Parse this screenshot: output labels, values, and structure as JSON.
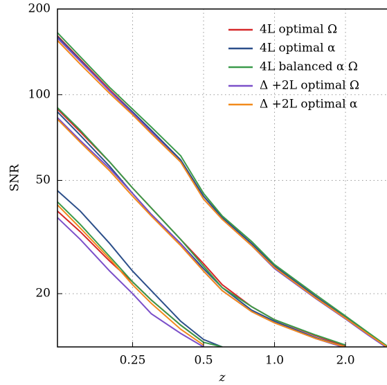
{
  "chart_data": {
    "type": "line",
    "xlabel": "z",
    "ylabel": "SNR",
    "log_x": true,
    "log_y": true,
    "grid": true,
    "legend": "upper right",
    "xlim": [
      0.12,
      3.0
    ],
    "ylim": [
      13,
      200
    ],
    "xticks": [
      0.25,
      0.5,
      {
        "value": 1,
        "label": "1.0"
      },
      {
        "value": 2,
        "label": "2.0"
      }
    ],
    "yticks": [
      20,
      50,
      100,
      200
    ],
    "x": [
      0.12,
      0.15,
      0.2,
      0.25,
      0.3,
      0.4,
      0.5,
      0.6,
      0.8,
      1.0,
      1.5,
      2.0,
      2.5,
      3.0
    ],
    "series": [
      {
        "name": "4L optimal Ω",
        "color": "#d62728",
        "values": [
          [
            161,
            133,
            104,
            87,
            75,
            59,
            44,
            37,
            30,
            25,
            19.5,
            16.5,
            14.5,
            13
          ],
          [
            89,
            74,
            58,
            47,
            40,
            31,
            25.5,
            21.5,
            18,
            16.2,
            14.2,
            13.1,
            null,
            null
          ],
          [
            39,
            33,
            26,
            22,
            19,
            15.5,
            13.5,
            null,
            null,
            null,
            null,
            null,
            null,
            null
          ]
        ]
      },
      {
        "name": "4L optimal α",
        "color": "#2c4f8a",
        "values": [
          [
            160,
            132,
            103,
            87,
            75,
            59,
            44,
            37,
            30,
            25,
            19.5,
            16.5,
            14.5,
            13
          ],
          [
            87,
            72,
            56,
            45,
            38,
            30,
            24.5,
            21,
            17.5,
            16,
            14,
            13,
            null,
            null
          ],
          [
            46,
            39,
            30,
            24,
            20.5,
            16,
            13.8,
            13,
            null,
            null,
            null,
            null,
            null,
            null
          ]
        ]
      },
      {
        "name": "4L balanced α Ω",
        "color": "#3a9a4a",
        "values": [
          [
            165,
            136,
            106,
            89,
            77,
            61,
            45,
            37.5,
            30.5,
            25.3,
            19.8,
            16.7,
            14.6,
            13.1
          ],
          [
            90,
            75,
            58,
            47,
            40,
            31,
            25,
            21,
            18,
            16.2,
            14.3,
            13.2,
            null,
            null
          ],
          [
            42,
            35,
            27,
            22,
            19,
            15.5,
            13.5,
            13,
            null,
            null,
            null,
            null,
            null,
            null
          ]
        ]
      },
      {
        "name": "Δ +2L optimal Ω",
        "color": "#7b4fc9",
        "values": [
          [
            158,
            131,
            103,
            86,
            74,
            58,
            43,
            36.5,
            29.5,
            24.5,
            19.2,
            16.3,
            14.3,
            12.9
          ],
          [
            83,
            69,
            55,
            45,
            38,
            30,
            24,
            20.5,
            17.3,
            15.8,
            13.9,
            12.9,
            null,
            null
          ],
          [
            37,
            31,
            24,
            20,
            17,
            14.5,
            13,
            null,
            null,
            null,
            null,
            null,
            null,
            null
          ]
        ]
      },
      {
        "name": "Δ +2L optimal α",
        "color": "#f28a1c",
        "values": [
          [
            155,
            128,
            101,
            85,
            73,
            58,
            43,
            36.5,
            29.5,
            24.7,
            19.3,
            16.4,
            14.4,
            13
          ],
          [
            82,
            68,
            54,
            44,
            37.5,
            29.5,
            24,
            20.5,
            17.3,
            15.8,
            13.9,
            13,
            null,
            null
          ],
          [
            41,
            34,
            26.5,
            21.5,
            18.5,
            15,
            13.2,
            null,
            null,
            null,
            null,
            null,
            null,
            null
          ]
        ]
      }
    ]
  }
}
